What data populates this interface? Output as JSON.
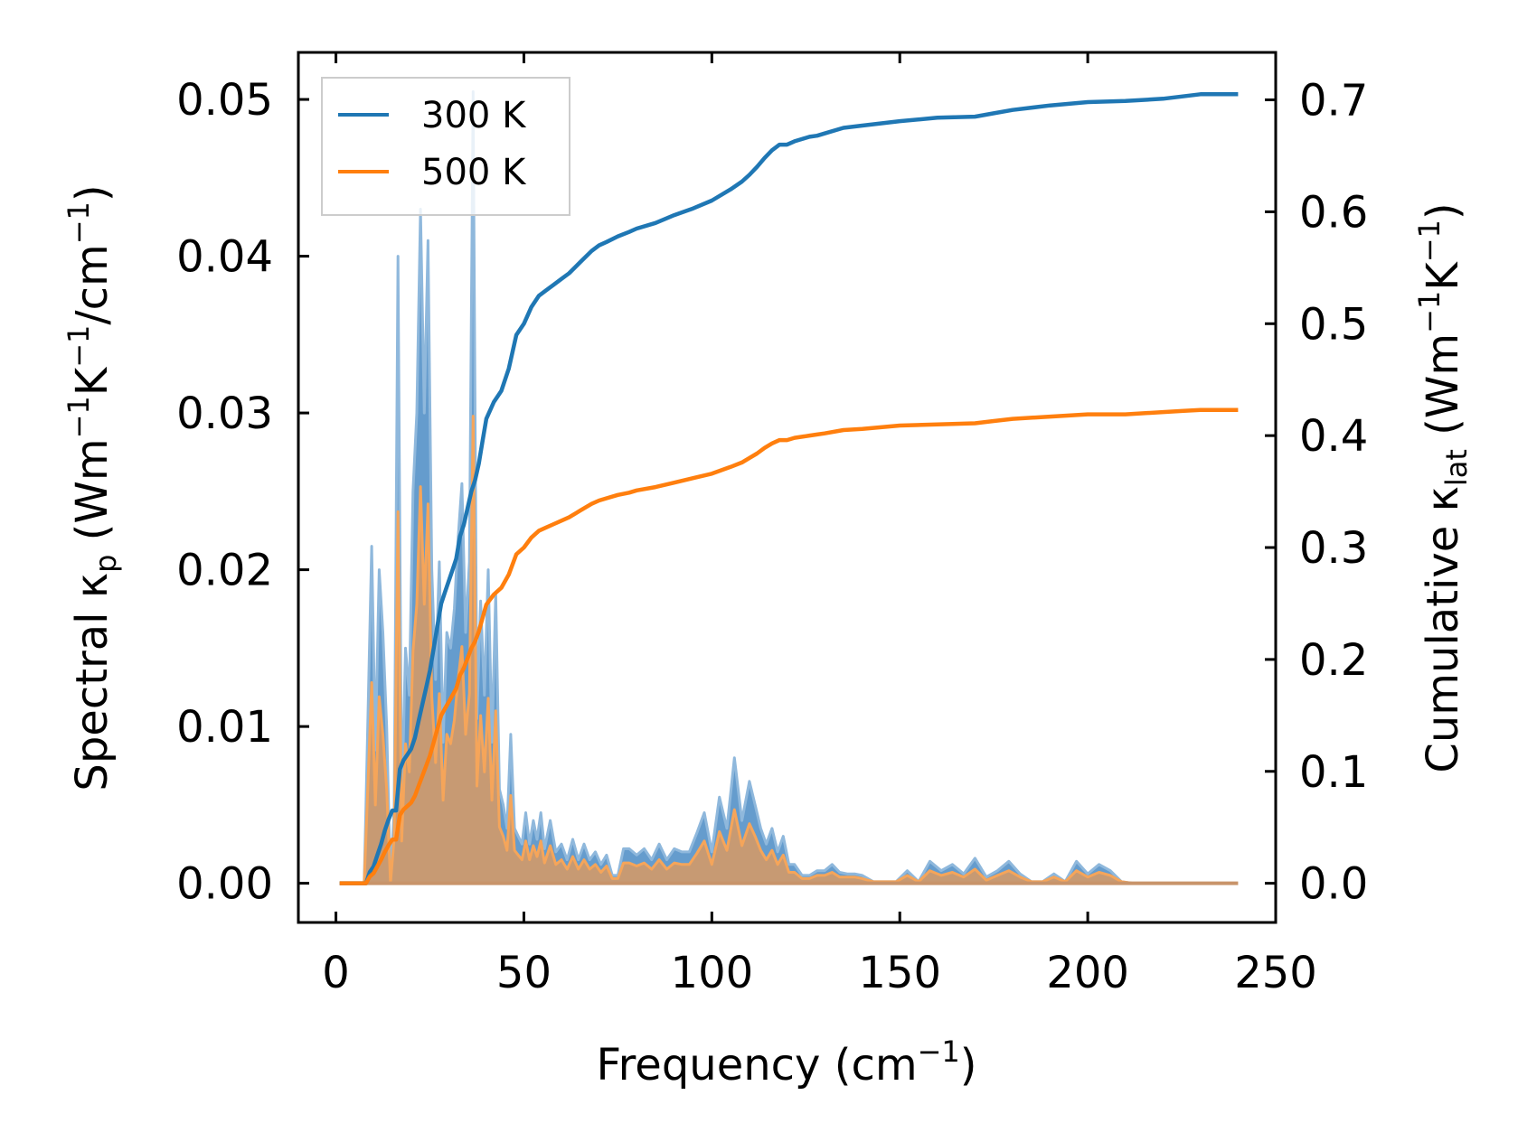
{
  "chart_data": {
    "type": "line",
    "xlabel": {
      "main": "Frequency (cm",
      "sup": "−1",
      "tail": ")"
    },
    "ylabel_left": {
      "pre": "Spectral κ",
      "sub": "p",
      "mid1": " (Wm",
      "sup1": "−1",
      "mid2": "K",
      "sup2": "−1",
      "mid3": "/cm",
      "sup3": "−1",
      "tail": ")"
    },
    "ylabel_right": {
      "pre": "Cumulative κ",
      "sub": "lat",
      "mid1": " (Wm",
      "sup1": "−1",
      "mid2": "K",
      "sup2": "−1",
      "tail": ")"
    },
    "xlim": [
      -10,
      250
    ],
    "ylim_left": [
      -0.0025,
      0.053
    ],
    "ylim_right": [
      -0.035,
      0.7424
    ],
    "xticks": [
      0,
      50,
      100,
      150,
      200,
      250
    ],
    "xtick_labels": [
      "0",
      "50",
      "100",
      "150",
      "200",
      "250"
    ],
    "yticks_left": [
      0.0,
      0.01,
      0.02,
      0.03,
      0.04,
      0.05
    ],
    "ytick_labels_left": [
      "0.00",
      "0.01",
      "0.02",
      "0.03",
      "0.04",
      "0.05"
    ],
    "yticks_right": [
      0.0,
      0.1,
      0.2,
      0.3,
      0.4,
      0.5,
      0.6,
      0.7
    ],
    "ytick_labels_right": [
      "0.0",
      "0.1",
      "0.2",
      "0.3",
      "0.4",
      "0.5",
      "0.6",
      "0.7"
    ],
    "legend": {
      "placement": "top-left",
      "entries": [
        "300 K",
        "500 K"
      ]
    },
    "colors": {
      "300K": "#1f77b4",
      "500K": "#ff7f0e",
      "fill300": "#4a8bc4",
      "fill500": "#cc9a6e"
    },
    "spectral_x": [
      1,
      7.5,
      8,
      9.5,
      10.5,
      11.5,
      12.5,
      13.5,
      14.5,
      15.5,
      16.5,
      17.5,
      18.5,
      19.5,
      20.5,
      21.5,
      22.5,
      23.5,
      24.5,
      25.5,
      26.5,
      27.5,
      28.5,
      29.5,
      30.5,
      31.5,
      32.5,
      33.5,
      34.5,
      35.5,
      36.5,
      37.5,
      38.5,
      39.5,
      40.5,
      41.5,
      42.5,
      43.5,
      44.5,
      45.5,
      46.5,
      47.5,
      48.5,
      49.5,
      50.5,
      51.5,
      52.5,
      53.5,
      54.5,
      55.5,
      57,
      58.5,
      60,
      61.5,
      63,
      64.5,
      66,
      67.5,
      69,
      70.5,
      72,
      73.5,
      75,
      76.5,
      78,
      80,
      82,
      84,
      86,
      88,
      90,
      92,
      94,
      96,
      98,
      100,
      102,
      104,
      106,
      108,
      110,
      111.5,
      113,
      114.5,
      116,
      117.5,
      119,
      120.5,
      122,
      124,
      126,
      128,
      130,
      132,
      134,
      136,
      138,
      140,
      143,
      146,
      149,
      152,
      155,
      158,
      161,
      164,
      167,
      170,
      173,
      176,
      179,
      182,
      185,
      188,
      191,
      194,
      197,
      200,
      203,
      206,
      209,
      212,
      215,
      218,
      221,
      224,
      227,
      230,
      233,
      236,
      240
    ],
    "spectral_300": [
      0,
      0,
      0.005,
      0.0215,
      0.0085,
      0.02,
      0.016,
      0.01,
      0,
      0.0048,
      0.04,
      0.0045,
      0.015,
      0.012,
      0.025,
      0.03,
      0.043,
      0.03,
      0.041,
      0.02,
      0.013,
      0.0205,
      0.009,
      0.016,
      0.015,
      0.0175,
      0.022,
      0.0255,
      0.016,
      0.0205,
      0.0505,
      0.0105,
      0.018,
      0.012,
      0.02,
      0.009,
      0.0185,
      0.006,
      0.005,
      0.0035,
      0.0095,
      0.0035,
      0.003,
      0.0025,
      0.0045,
      0.0025,
      0.004,
      0.0028,
      0.0045,
      0.0022,
      0.004,
      0.002,
      0.0025,
      0.0015,
      0.0028,
      0.0015,
      0.0025,
      0.0015,
      0.002,
      0.0012,
      0.0018,
      0.0005,
      0.0005,
      0.0022,
      0.0022,
      0.0018,
      0.0022,
      0.0015,
      0.0025,
      0.0015,
      0.0022,
      0.002,
      0.002,
      0.0032,
      0.0045,
      0.002,
      0.0055,
      0.0035,
      0.008,
      0.004,
      0.0065,
      0.005,
      0.0035,
      0.0025,
      0.0035,
      0.002,
      0.003,
      0.0012,
      0.0012,
      0.0005,
      0.0005,
      0.0008,
      0.0008,
      0.0012,
      0.0007,
      0.0006,
      0.0006,
      0.0005,
      0.0001,
      0.0001,
      0.0001,
      0.0008,
      0.0001,
      0.0014,
      0.0008,
      0.0012,
      0.0006,
      0.0016,
      0.0004,
      0.0008,
      0.0014,
      0.0006,
      0.0001,
      0.0001,
      0.0006,
      0.0001,
      0.0014,
      0.0006,
      0.0012,
      0.0008,
      0.0001,
      0,
      0
    ],
    "spectral_500": [
      0,
      0,
      0.003,
      0.0128,
      0.005,
      0.0119,
      0.0095,
      0.006,
      0,
      0.0029,
      0.0237,
      0.0027,
      0.0089,
      0.0071,
      0.0148,
      0.0178,
      0.0253,
      0.0178,
      0.0242,
      0.0119,
      0.0077,
      0.0121,
      0.0053,
      0.0095,
      0.0089,
      0.0104,
      0.013,
      0.0151,
      0.0095,
      0.0121,
      0.0298,
      0.0062,
      0.0107,
      0.0071,
      0.0118,
      0.0053,
      0.011,
      0.0036,
      0.003,
      0.0021,
      0.0056,
      0.0021,
      0.0018,
      0.0015,
      0.0027,
      0.0015,
      0.0024,
      0.0017,
      0.0027,
      0.0013,
      0.0024,
      0.0012,
      0.0015,
      0.0009,
      0.0017,
      0.0009,
      0.0015,
      0.0009,
      0.0012,
      0.0007,
      0.0011,
      0.0003,
      0.0003,
      0.0013,
      0.0013,
      0.0011,
      0.0013,
      0.0009,
      0.0015,
      0.0009,
      0.0013,
      0.0012,
      0.0012,
      0.0019,
      0.0027,
      0.0012,
      0.0033,
      0.0021,
      0.0047,
      0.0024,
      0.0038,
      0.003,
      0.0021,
      0.0015,
      0.0021,
      0.0012,
      0.0018,
      0.0007,
      0.0007,
      0.0003,
      0.0003,
      0.0005,
      0.0005,
      0.0007,
      0.0004,
      0.0004,
      0.0004,
      0.0003,
      0.0001,
      0.0001,
      0.0001,
      0.0005,
      0.0001,
      0.0008,
      0.0005,
      0.0007,
      0.0004,
      0.0009,
      0.0002,
      0.0005,
      0.0008,
      0.0004,
      0.0001,
      0.0001,
      0.0004,
      0.0001,
      0.0008,
      0.0004,
      0.0007,
      0.0005,
      0.0001,
      0,
      0
    ],
    "cumulative_x": [
      1,
      8,
      9,
      10,
      11,
      12,
      13,
      14,
      15,
      16,
      17,
      18,
      19,
      20,
      21,
      22,
      23,
      24,
      25,
      26,
      27,
      28,
      29,
      30,
      31,
      32,
      33,
      34,
      35,
      36,
      37,
      38,
      39,
      40,
      42,
      44,
      46,
      48,
      50,
      52,
      54,
      56,
      58,
      60,
      62,
      65,
      68,
      70,
      72,
      75,
      78,
      80,
      85,
      90,
      95,
      100,
      105,
      108,
      110,
      112,
      114,
      116,
      118,
      120,
      122,
      124,
      126,
      128,
      130,
      135,
      140,
      150,
      160,
      170,
      175,
      180,
      190,
      200,
      210,
      220,
      225,
      230,
      235,
      240
    ],
    "cumulative_300": [
      0,
      0,
      0.01,
      0.015,
      0.025,
      0.035,
      0.047,
      0.057,
      0.065,
      0.065,
      0.102,
      0.11,
      0.115,
      0.12,
      0.13,
      0.145,
      0.16,
      0.175,
      0.19,
      0.21,
      0.23,
      0.25,
      0.26,
      0.27,
      0.28,
      0.29,
      0.31,
      0.32,
      0.335,
      0.35,
      0.36,
      0.375,
      0.395,
      0.415,
      0.43,
      0.44,
      0.46,
      0.49,
      0.5,
      0.515,
      0.525,
      0.53,
      0.535,
      0.54,
      0.545,
      0.555,
      0.565,
      0.57,
      0.573,
      0.578,
      0.582,
      0.585,
      0.59,
      0.597,
      0.603,
      0.61,
      0.62,
      0.627,
      0.633,
      0.64,
      0.648,
      0.655,
      0.66,
      0.66,
      0.663,
      0.665,
      0.667,
      0.668,
      0.67,
      0.675,
      0.677,
      0.681,
      0.684,
      0.685,
      0.688,
      0.691,
      0.695,
      0.698,
      0.699,
      0.701,
      0.703,
      0.705,
      0.705,
      0.705
    ],
    "cumulative_500": [
      0,
      0,
      0.006,
      0.009,
      0.015,
      0.021,
      0.028,
      0.034,
      0.039,
      0.039,
      0.061,
      0.066,
      0.069,
      0.072,
      0.078,
      0.087,
      0.096,
      0.105,
      0.114,
      0.126,
      0.138,
      0.15,
      0.156,
      0.162,
      0.168,
      0.174,
      0.186,
      0.192,
      0.201,
      0.21,
      0.216,
      0.225,
      0.237,
      0.249,
      0.258,
      0.264,
      0.276,
      0.294,
      0.3,
      0.309,
      0.315,
      0.318,
      0.321,
      0.324,
      0.327,
      0.333,
      0.339,
      0.342,
      0.344,
      0.347,
      0.349,
      0.351,
      0.354,
      0.358,
      0.362,
      0.366,
      0.372,
      0.376,
      0.38,
      0.384,
      0.389,
      0.393,
      0.396,
      0.396,
      0.398,
      0.399,
      0.4,
      0.401,
      0.402,
      0.405,
      0.406,
      0.409,
      0.41,
      0.411,
      0.413,
      0.415,
      0.417,
      0.419,
      0.419,
      0.421,
      0.422,
      0.423,
      0.423,
      0.423
    ]
  }
}
